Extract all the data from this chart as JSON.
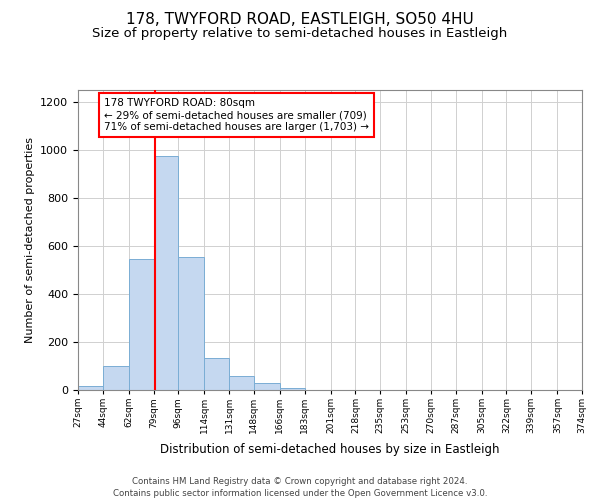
{
  "title": "178, TWYFORD ROAD, EASTLEIGH, SO50 4HU",
  "subtitle": "Size of property relative to semi-detached houses in Eastleigh",
  "xlabel": "Distribution of semi-detached houses by size in Eastleigh",
  "ylabel": "Number of semi-detached properties",
  "footer_line1": "Contains HM Land Registry data © Crown copyright and database right 2024.",
  "footer_line2": "Contains public sector information licensed under the Open Government Licence v3.0.",
  "annotation_title": "178 TWYFORD ROAD: 80sqm",
  "annotation_line1": "← 29% of semi-detached houses are smaller (709)",
  "annotation_line2": "71% of semi-detached houses are larger (1,703) →",
  "bar_edges": [
    27,
    44,
    62,
    79,
    96,
    114,
    131,
    148,
    166,
    183,
    201,
    218,
    235,
    253,
    270,
    287,
    305,
    322,
    339,
    357,
    374
  ],
  "bar_heights": [
    15,
    100,
    545,
    975,
    555,
    135,
    60,
    28,
    10,
    0,
    0,
    0,
    0,
    0,
    0,
    0,
    0,
    0,
    0,
    0
  ],
  "bar_color": "#c5d8f0",
  "bar_edge_color": "#7aadd4",
  "redline_x": 80,
  "ylim": [
    0,
    1250
  ],
  "yticks": [
    0,
    200,
    400,
    600,
    800,
    1000,
    1200
  ],
  "grid_color": "#d0d0d0",
  "background_color": "#ffffff",
  "title_fontsize": 11,
  "subtitle_fontsize": 9.5,
  "tick_labels": [
    "27sqm",
    "44sqm",
    "62sqm",
    "79sqm",
    "96sqm",
    "114sqm",
    "131sqm",
    "148sqm",
    "166sqm",
    "183sqm",
    "201sqm",
    "218sqm",
    "235sqm",
    "253sqm",
    "270sqm",
    "287sqm",
    "305sqm",
    "322sqm",
    "339sqm",
    "357sqm",
    "374sqm"
  ]
}
